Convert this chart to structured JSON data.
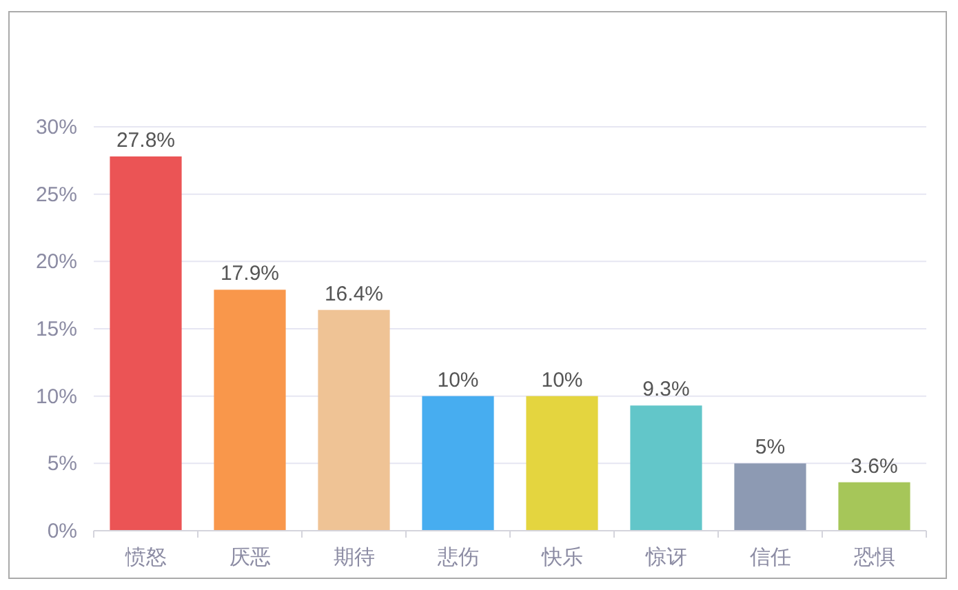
{
  "chart_data": {
    "type": "bar",
    "categories": [
      "愤怒",
      "厌恶",
      "期待",
      "悲伤",
      "快乐",
      "惊讶",
      "信任",
      "恐惧"
    ],
    "values": [
      27.8,
      17.9,
      16.4,
      10,
      10,
      9.3,
      5,
      3.6
    ],
    "colors": [
      "#eb5455",
      "#f9974b",
      "#efc395",
      "#47adf0",
      "#e4d53f",
      "#62c6c9",
      "#8d9ab3",
      "#a6c659"
    ],
    "value_labels": [
      "27.8%",
      "17.9%",
      "16.4%",
      "10%",
      "10%",
      "9.3%",
      "5%",
      "3.6%"
    ],
    "ylim": [
      0,
      30
    ],
    "yticks": [
      {
        "value": 0,
        "label": "0%"
      },
      {
        "value": 5,
        "label": "5%"
      },
      {
        "value": 10,
        "label": "10%"
      },
      {
        "value": 15,
        "label": "15%"
      },
      {
        "value": 20,
        "label": "20%"
      },
      {
        "value": 25,
        "label": "25%"
      },
      {
        "value": 30,
        "label": "30%"
      }
    ],
    "grid": "y"
  }
}
